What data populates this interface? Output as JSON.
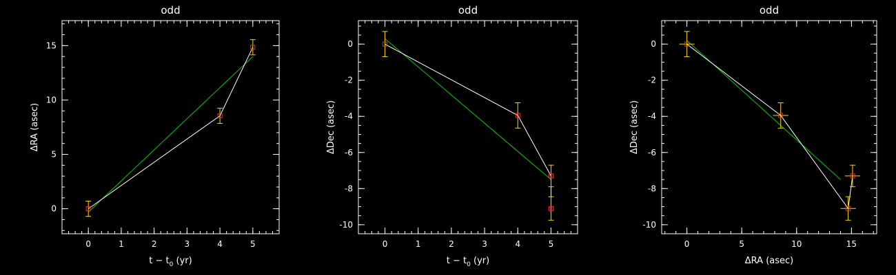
{
  "colors": {
    "background": "#000000",
    "axes": "#ffffff",
    "data_line": "#ffffff",
    "fit_line": "#00cc00",
    "marker": "#ff2a2a",
    "error_bar": "#ffd700"
  },
  "chart_data": [
    {
      "type": "line",
      "title": "odd",
      "xlabel": "t − t",
      "xlabel_sub": "0",
      "xlabel_suffix": " (yr)",
      "ylabel": "ΔRA (asec)",
      "xlim": [
        -0.8,
        5.8
      ],
      "ylim": [
        -2.3,
        17.3
      ],
      "xticks": [
        0,
        1,
        2,
        3,
        4,
        5
      ],
      "yticks": [
        0,
        5,
        10,
        15
      ],
      "series": [
        {
          "x": [
            0,
            4,
            5
          ],
          "y": [
            0,
            8.55,
            14.85
          ],
          "yerr": [
            0.7,
            0.7,
            0.7
          ],
          "marker": "square"
        }
      ],
      "fit": {
        "x": [
          0,
          5
        ],
        "y": [
          -0.3,
          14.0
        ]
      }
    },
    {
      "type": "line",
      "title": "odd",
      "xlabel": "t − t",
      "xlabel_sub": "0",
      "xlabel_suffix": " (yr)",
      "ylabel": "ΔDec (asec)",
      "xlim": [
        -0.8,
        5.8
      ],
      "ylim": [
        -10.5,
        1.3
      ],
      "xticks": [
        0,
        1,
        2,
        3,
        4,
        5
      ],
      "yticks": [
        0,
        -2,
        -4,
        -6,
        -8,
        -10
      ],
      "series": [
        {
          "x": [
            0,
            4,
            5,
            5
          ],
          "y": [
            0,
            -3.95,
            -7.3,
            -9.1
          ],
          "yerr": [
            0.7,
            0.7,
            0.6,
            0.65
          ],
          "marker": "square"
        }
      ],
      "fit": {
        "x": [
          0,
          5
        ],
        "y": [
          0.3,
          -7.5
        ]
      }
    },
    {
      "type": "scatter",
      "title": "odd",
      "xlabel": "ΔRA (asec)",
      "ylabel": "ΔDec (asec)",
      "xlim": [
        -2.3,
        17.3
      ],
      "ylim": [
        -10.5,
        1.3
      ],
      "xticks": [
        0,
        5,
        10,
        15
      ],
      "yticks": [
        0,
        -2,
        -4,
        -6,
        -8,
        -10
      ],
      "series": [
        {
          "x": [
            0,
            8.55,
            14.7,
            15.1
          ],
          "y": [
            0,
            -3.95,
            -9.1,
            -7.3
          ],
          "xerr": [
            0.7,
            0.7,
            0.7,
            0.7
          ],
          "yerr": [
            0.7,
            0.7,
            0.65,
            0.6
          ],
          "marker": "square"
        }
      ],
      "fit": {
        "x": [
          0,
          14.0
        ],
        "y": [
          0.2,
          -7.5
        ]
      }
    }
  ]
}
